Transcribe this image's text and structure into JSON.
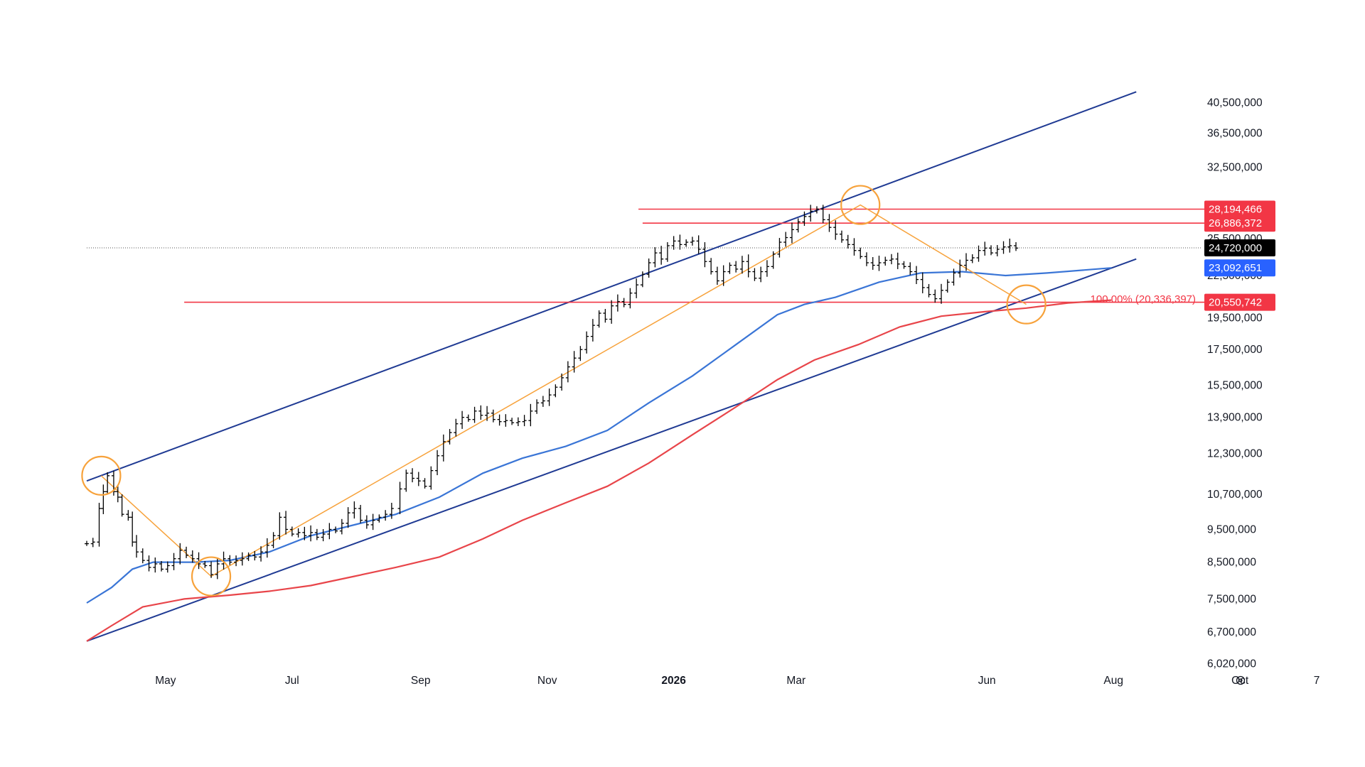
{
  "chart_data": {
    "type": "line",
    "scale": "log",
    "ylim": [
      5800000,
      44000000
    ],
    "grid": false,
    "x_ticks": [
      {
        "label": "May",
        "date": "2025-05-01"
      },
      {
        "label": "Jul",
        "date": "2025-07-01"
      },
      {
        "label": "Sep",
        "date": "2025-09-01"
      },
      {
        "label": "Nov",
        "date": "2025-11-01"
      },
      {
        "label": "2026",
        "date": "2026-01-01",
        "bold": true
      },
      {
        "label": "Mar",
        "date": "2026-03-01"
      },
      {
        "label": "Jun",
        "date": "2026-06-01"
      },
      {
        "label": "Aug",
        "date": "2026-08-01"
      },
      {
        "label": "Oct",
        "date": "2026-10-01"
      },
      {
        "label": "7",
        "date": "2026-11-07"
      }
    ],
    "y_ticks": [
      {
        "label": "40,500,000",
        "value": 40500000
      },
      {
        "label": "36,500,000",
        "value": 36500000
      },
      {
        "label": "32,500,000",
        "value": 32500000
      },
      {
        "label": "25,500,000",
        "value": 25500000
      },
      {
        "label": "22,500,000",
        "value": 22500000
      },
      {
        "label": "19,500,000",
        "value": 19500000
      },
      {
        "label": "17,500,000",
        "value": 17500000
      },
      {
        "label": "15,500,000",
        "value": 15500000
      },
      {
        "label": "13,900,000",
        "value": 13900000
      },
      {
        "label": "12,300,000",
        "value": 12300000
      },
      {
        "label": "10,700,000",
        "value": 10700000
      },
      {
        "label": "9,500,000",
        "value": 9500000
      },
      {
        "label": "8,500,000",
        "value": 8500000
      },
      {
        "label": "7,500,000",
        "value": 7500000
      },
      {
        "label": "6,700,000",
        "value": 6700000
      },
      {
        "label": "6,020,000",
        "value": 6020000
      }
    ],
    "badges": [
      {
        "label": "28,194,466",
        "value": 28194466,
        "color": "#f23645"
      },
      {
        "label": "26,886,372",
        "value": 26886372,
        "color": "#f23645"
      },
      {
        "label": "24,720,000",
        "value": 24720000,
        "color": "#000000"
      },
      {
        "label": "23,092,651",
        "value": 23092651,
        "color": "#2962ff"
      },
      {
        "label": "20,550,742",
        "value": 20550742,
        "color": "#f23645"
      }
    ],
    "fib_label": "100.00% (20,336,397)",
    "horizontal_levels": [
      {
        "value": 28194466,
        "start": "2025-12-15",
        "color": "#f23645"
      },
      {
        "value": 26886372,
        "start": "2025-12-17",
        "color": "#f23645"
      },
      {
        "value": 20550742,
        "start": "2025-05-10",
        "color": "#f23645"
      }
    ],
    "last_price": 24720000,
    "channel": {
      "upper": [
        [
          "2025-03-24",
          11200000
        ],
        [
          "2026-08-12",
          42000000
        ]
      ],
      "lower": [
        [
          "2025-03-24",
          6500000
        ],
        [
          "2026-08-12",
          23800000
        ]
      ],
      "color": "#1f3a93"
    },
    "pivot_path": {
      "color": "#f7a23b",
      "points": [
        [
          "2025-03-31",
          11400000
        ],
        [
          "2025-05-23",
          8100000
        ],
        [
          "2026-04-01",
          28600000
        ],
        [
          "2026-06-20",
          20400000
        ]
      ]
    },
    "circles": [
      {
        "date": "2025-03-31",
        "value": 11400000
      },
      {
        "date": "2025-05-23",
        "value": 8100000
      },
      {
        "date": "2026-04-01",
        "value": 28600000
      },
      {
        "date": "2026-06-20",
        "value": 20400000
      }
    ],
    "series": [
      {
        "name": "",
        "color": "#3a75d6",
        "points": [
          [
            "2025-03-24",
            7400000
          ],
          [
            "2025-04-05",
            7800000
          ],
          [
            "2025-04-15",
            8300000
          ],
          [
            "2025-04-25",
            8500000
          ],
          [
            "2025-05-15",
            8500000
          ],
          [
            "2025-06-01",
            8550000
          ],
          [
            "2025-06-20",
            8800000
          ],
          [
            "2025-07-10",
            9300000
          ],
          [
            "2025-07-31",
            9650000
          ],
          [
            "2025-08-20",
            10000000
          ],
          [
            "2025-09-10",
            10600000
          ],
          [
            "2025-10-01",
            11500000
          ],
          [
            "2025-10-20",
            12100000
          ],
          [
            "2025-11-10",
            12600000
          ],
          [
            "2025-11-30",
            13300000
          ],
          [
            "2025-12-20",
            14600000
          ],
          [
            "2026-01-10",
            16000000
          ],
          [
            "2026-01-31",
            17800000
          ],
          [
            "2026-02-20",
            19700000
          ],
          [
            "2026-03-05",
            20400000
          ],
          [
            "2026-03-20",
            20900000
          ],
          [
            "2026-04-10",
            22000000
          ],
          [
            "2026-04-30",
            22700000
          ],
          [
            "2026-05-20",
            22800000
          ],
          [
            "2026-06-10",
            22500000
          ],
          [
            "2026-06-30",
            22700000
          ],
          [
            "2026-07-31",
            23092651
          ]
        ]
      },
      {
        "name": "",
        "color": "#e8454a",
        "points": [
          [
            "2025-03-24",
            6500000
          ],
          [
            "2025-04-05",
            6850000
          ],
          [
            "2025-04-20",
            7300000
          ],
          [
            "2025-05-10",
            7500000
          ],
          [
            "2025-06-01",
            7600000
          ],
          [
            "2025-06-20",
            7700000
          ],
          [
            "2025-07-10",
            7850000
          ],
          [
            "2025-07-31",
            8100000
          ],
          [
            "2025-08-20",
            8350000
          ],
          [
            "2025-09-10",
            8650000
          ],
          [
            "2025-10-01",
            9200000
          ],
          [
            "2025-10-20",
            9800000
          ],
          [
            "2025-11-10",
            10400000
          ],
          [
            "2025-11-30",
            11000000
          ],
          [
            "2025-12-20",
            11900000
          ],
          [
            "2026-01-10",
            13100000
          ],
          [
            "2026-01-31",
            14400000
          ],
          [
            "2026-02-20",
            15800000
          ],
          [
            "2026-03-10",
            16900000
          ],
          [
            "2026-03-31",
            17800000
          ],
          [
            "2026-04-20",
            18900000
          ],
          [
            "2026-05-10",
            19600000
          ],
          [
            "2026-05-31",
            19900000
          ],
          [
            "2026-06-20",
            20150000
          ],
          [
            "2026-07-10",
            20500000
          ],
          [
            "2026-07-31",
            20700000
          ]
        ]
      },
      {
        "name": "",
        "type": "ohlc",
        "color": "#000000",
        "points": [
          [
            "2025-03-24",
            9050000
          ],
          [
            "2025-03-27",
            9100000
          ],
          [
            "2025-03-30",
            10200000
          ],
          [
            "2025-04-01",
            10800000
          ],
          [
            "2025-04-03",
            11400000
          ],
          [
            "2025-04-06",
            10800000
          ],
          [
            "2025-04-08",
            10600000
          ],
          [
            "2025-04-10",
            10000000
          ],
          [
            "2025-04-13",
            9900000
          ],
          [
            "2025-04-15",
            9100000
          ],
          [
            "2025-04-17",
            8800000
          ],
          [
            "2025-04-20",
            8550000
          ],
          [
            "2025-04-23",
            8350000
          ],
          [
            "2025-04-26",
            8450000
          ],
          [
            "2025-04-29",
            8300000
          ],
          [
            "2025-05-02",
            8400000
          ],
          [
            "2025-05-05",
            8600000
          ],
          [
            "2025-05-08",
            8850000
          ],
          [
            "2025-05-11",
            8700000
          ],
          [
            "2025-05-14",
            8600000
          ],
          [
            "2025-05-17",
            8450000
          ],
          [
            "2025-05-20",
            8400000
          ],
          [
            "2025-05-23",
            8150000
          ],
          [
            "2025-05-26",
            8450000
          ],
          [
            "2025-05-29",
            8600000
          ],
          [
            "2025-06-01",
            8500000
          ],
          [
            "2025-06-04",
            8550000
          ],
          [
            "2025-06-07",
            8600000
          ],
          [
            "2025-06-10",
            8700000
          ],
          [
            "2025-06-13",
            8650000
          ],
          [
            "2025-06-16",
            8800000
          ],
          [
            "2025-06-19",
            9000000
          ],
          [
            "2025-06-22",
            9300000
          ],
          [
            "2025-06-25",
            9900000
          ],
          [
            "2025-06-28",
            9500000
          ],
          [
            "2025-07-01",
            9350000
          ],
          [
            "2025-07-04",
            9400000
          ],
          [
            "2025-07-07",
            9300000
          ],
          [
            "2025-07-10",
            9400000
          ],
          [
            "2025-07-13",
            9250000
          ],
          [
            "2025-07-16",
            9350000
          ],
          [
            "2025-07-19",
            9500000
          ],
          [
            "2025-07-22",
            9450000
          ],
          [
            "2025-07-25",
            9700000
          ],
          [
            "2025-07-28",
            10050000
          ],
          [
            "2025-07-31",
            10200000
          ],
          [
            "2025-08-03",
            9800000
          ],
          [
            "2025-08-06",
            9650000
          ],
          [
            "2025-08-09",
            9800000
          ],
          [
            "2025-08-12",
            9900000
          ],
          [
            "2025-08-15",
            10000000
          ],
          [
            "2025-08-18",
            10200000
          ],
          [
            "2025-08-22",
            10900000
          ],
          [
            "2025-08-25",
            11500000
          ],
          [
            "2025-08-28",
            11300000
          ],
          [
            "2025-08-31",
            11200000
          ],
          [
            "2025-09-03",
            11000000
          ],
          [
            "2025-09-06",
            11600000
          ],
          [
            "2025-09-09",
            12200000
          ],
          [
            "2025-09-12",
            12800000
          ],
          [
            "2025-09-15",
            13200000
          ],
          [
            "2025-09-18",
            13600000
          ],
          [
            "2025-09-21",
            13900000
          ],
          [
            "2025-09-24",
            13800000
          ],
          [
            "2025-09-27",
            14200000
          ],
          [
            "2025-09-30",
            14000000
          ],
          [
            "2025-10-03",
            14100000
          ],
          [
            "2025-10-06",
            13800000
          ],
          [
            "2025-10-09",
            13700000
          ],
          [
            "2025-10-12",
            13750000
          ],
          [
            "2025-10-15",
            13650000
          ],
          [
            "2025-10-18",
            13700000
          ],
          [
            "2025-10-21",
            13750000
          ],
          [
            "2025-10-24",
            14200000
          ],
          [
            "2025-10-27",
            14600000
          ],
          [
            "2025-10-30",
            14700000
          ],
          [
            "2025-11-02",
            15000000
          ],
          [
            "2025-11-05",
            15400000
          ],
          [
            "2025-11-08",
            15900000
          ],
          [
            "2025-11-11",
            16500000
          ],
          [
            "2025-11-14",
            17000000
          ],
          [
            "2025-11-17",
            17500000
          ],
          [
            "2025-11-20",
            18300000
          ],
          [
            "2025-11-23",
            19000000
          ],
          [
            "2025-11-26",
            19800000
          ],
          [
            "2025-11-29",
            19400000
          ],
          [
            "2025-12-02",
            20300000
          ],
          [
            "2025-12-05",
            20600000
          ],
          [
            "2025-12-08",
            20400000
          ],
          [
            "2025-12-11",
            21200000
          ],
          [
            "2025-12-14",
            21800000
          ],
          [
            "2025-12-17",
            22600000
          ],
          [
            "2025-12-20",
            23500000
          ],
          [
            "2025-12-23",
            24300000
          ],
          [
            "2025-12-26",
            23800000
          ],
          [
            "2025-12-29",
            24900000
          ],
          [
            "2026-01-01",
            25300000
          ],
          [
            "2026-01-04",
            25000000
          ],
          [
            "2026-01-07",
            25200000
          ],
          [
            "2026-01-10",
            25300000
          ],
          [
            "2026-01-13",
            24600000
          ],
          [
            "2026-01-16",
            23600000
          ],
          [
            "2026-01-19",
            22800000
          ],
          [
            "2026-01-22",
            22100000
          ],
          [
            "2026-01-25",
            22800000
          ],
          [
            "2026-01-28",
            23300000
          ],
          [
            "2026-01-31",
            23000000
          ],
          [
            "2026-02-03",
            23600000
          ],
          [
            "2026-02-06",
            22800000
          ],
          [
            "2026-02-09",
            22300000
          ],
          [
            "2026-02-12",
            22800000
          ],
          [
            "2026-02-15",
            23200000
          ],
          [
            "2026-02-18",
            24200000
          ],
          [
            "2026-02-21",
            25200000
          ],
          [
            "2026-02-24",
            25600000
          ],
          [
            "2026-02-27",
            26300000
          ],
          [
            "2026-03-02",
            27000000
          ],
          [
            "2026-03-05",
            27500000
          ],
          [
            "2026-03-08",
            28000000
          ],
          [
            "2026-03-11",
            28200000
          ],
          [
            "2026-03-14",
            27200000
          ],
          [
            "2026-03-17",
            26500000
          ],
          [
            "2026-03-20",
            25900000
          ],
          [
            "2026-03-23",
            25400000
          ],
          [
            "2026-03-26",
            25000000
          ],
          [
            "2026-03-29",
            24500000
          ],
          [
            "2026-04-01",
            24000000
          ],
          [
            "2026-04-04",
            23500000
          ],
          [
            "2026-04-07",
            23300000
          ],
          [
            "2026-04-10",
            23500000
          ],
          [
            "2026-04-13",
            23700000
          ],
          [
            "2026-04-16",
            23800000
          ],
          [
            "2026-04-19",
            23400000
          ],
          [
            "2026-04-22",
            23200000
          ],
          [
            "2026-04-25",
            22800000
          ],
          [
            "2026-04-28",
            22200000
          ],
          [
            "2026-05-01",
            21600000
          ],
          [
            "2026-05-04",
            21100000
          ],
          [
            "2026-05-07",
            20800000
          ],
          [
            "2026-05-10",
            21400000
          ],
          [
            "2026-05-13",
            22000000
          ],
          [
            "2026-05-16",
            22700000
          ],
          [
            "2026-05-19",
            23300000
          ],
          [
            "2026-05-22",
            23700000
          ],
          [
            "2026-05-25",
            23900000
          ],
          [
            "2026-05-28",
            24500000
          ],
          [
            "2026-05-31",
            24700000
          ],
          [
            "2026-06-03",
            24300000
          ],
          [
            "2026-06-06",
            24600000
          ],
          [
            "2026-06-09",
            24800000
          ],
          [
            "2026-06-12",
            24900000
          ],
          [
            "2026-06-15",
            24700000
          ]
        ]
      }
    ]
  }
}
